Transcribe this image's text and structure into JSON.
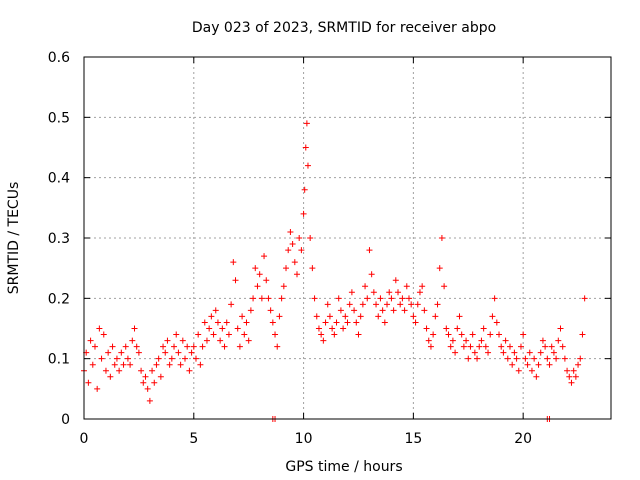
{
  "chart_data": {
    "type": "scatter",
    "title": "Day 023 of 2023, SRMTID for receiver abpo",
    "xlabel": "GPS time / hours",
    "ylabel": "SRMTID / TECUs",
    "xlim": [
      0,
      24
    ],
    "ylim": [
      0,
      0.6
    ],
    "xticks": [
      0,
      5,
      10,
      15,
      20
    ],
    "xtick_labels": [
      "0",
      "5",
      "10",
      "15",
      "20"
    ],
    "yticks": [
      0,
      0.1,
      0.2,
      0.3,
      0.4,
      0.5,
      0.6
    ],
    "ytick_labels": [
      "0",
      "0.1",
      "0.2",
      "0.3",
      "0.4",
      "0.5",
      "0.6"
    ],
    "grid": true,
    "marker": "+",
    "color": "#ff0000",
    "series": [
      {
        "name": "SRMTID",
        "x": [
          0.0,
          0.1,
          0.2,
          0.3,
          0.4,
          0.5,
          0.6,
          0.7,
          0.8,
          0.9,
          1.0,
          1.1,
          1.2,
          1.3,
          1.4,
          1.5,
          1.6,
          1.7,
          1.8,
          1.9,
          2.0,
          2.1,
          2.2,
          2.3,
          2.4,
          2.5,
          2.6,
          2.7,
          2.8,
          2.9,
          3.0,
          3.1,
          3.2,
          3.3,
          3.4,
          3.5,
          3.6,
          3.7,
          3.8,
          3.9,
          4.0,
          4.1,
          4.2,
          4.3,
          4.4,
          4.5,
          4.6,
          4.7,
          4.8,
          4.9,
          5.0,
          5.1,
          5.2,
          5.3,
          5.4,
          5.5,
          5.6,
          5.7,
          5.8,
          5.9,
          6.0,
          6.1,
          6.2,
          6.3,
          6.4,
          6.5,
          6.6,
          6.7,
          6.8,
          6.9,
          7.0,
          7.1,
          7.2,
          7.3,
          7.4,
          7.5,
          7.6,
          7.7,
          7.8,
          7.9,
          8.0,
          8.1,
          8.2,
          8.3,
          8.4,
          8.5,
          8.6,
          8.7,
          8.8,
          8.9,
          9.0,
          9.1,
          9.2,
          9.3,
          9.4,
          9.5,
          9.6,
          9.7,
          9.8,
          9.9,
          10.0,
          10.05,
          10.1,
          10.15,
          10.2,
          10.3,
          10.4,
          10.5,
          10.6,
          10.7,
          10.8,
          10.9,
          11.0,
          11.1,
          11.2,
          11.3,
          11.4,
          11.5,
          11.6,
          11.7,
          11.8,
          11.9,
          12.0,
          12.1,
          12.2,
          12.3,
          12.4,
          12.5,
          12.6,
          12.7,
          12.8,
          12.9,
          13.0,
          13.1,
          13.2,
          13.3,
          13.4,
          13.5,
          13.6,
          13.7,
          13.8,
          13.9,
          14.0,
          14.1,
          14.2,
          14.3,
          14.4,
          14.5,
          14.6,
          14.7,
          14.8,
          14.9,
          15.0,
          15.1,
          15.2,
          15.3,
          15.4,
          15.5,
          15.6,
          15.7,
          15.8,
          15.9,
          16.0,
          16.1,
          16.2,
          16.3,
          16.4,
          16.5,
          16.6,
          16.7,
          16.8,
          16.9,
          17.0,
          17.1,
          17.2,
          17.3,
          17.4,
          17.5,
          17.6,
          17.7,
          17.8,
          17.9,
          18.0,
          18.1,
          18.2,
          18.3,
          18.4,
          18.5,
          18.6,
          18.7,
          18.8,
          18.9,
          19.0,
          19.1,
          19.2,
          19.3,
          19.4,
          19.5,
          19.6,
          19.7,
          19.8,
          19.9,
          20.0,
          20.1,
          20.2,
          20.3,
          20.4,
          20.5,
          20.6,
          20.7,
          20.8,
          20.9,
          21.0,
          21.1,
          21.2,
          21.3,
          21.4,
          21.5,
          21.6,
          21.7,
          21.8,
          21.9,
          22.0,
          22.1,
          22.2,
          22.3,
          22.4,
          22.5,
          22.6,
          22.7,
          22.8,
          8.6,
          8.7,
          21.1,
          21.2
        ],
        "y": [
          0.08,
          0.11,
          0.06,
          0.13,
          0.09,
          0.12,
          0.05,
          0.15,
          0.1,
          0.14,
          0.08,
          0.11,
          0.07,
          0.12,
          0.09,
          0.1,
          0.08,
          0.11,
          0.09,
          0.12,
          0.1,
          0.09,
          0.13,
          0.15,
          0.12,
          0.11,
          0.08,
          0.06,
          0.07,
          0.05,
          0.03,
          0.08,
          0.06,
          0.09,
          0.1,
          0.07,
          0.12,
          0.11,
          0.13,
          0.09,
          0.1,
          0.12,
          0.14,
          0.11,
          0.09,
          0.13,
          0.1,
          0.12,
          0.08,
          0.11,
          0.12,
          0.1,
          0.14,
          0.09,
          0.12,
          0.16,
          0.13,
          0.15,
          0.17,
          0.14,
          0.18,
          0.16,
          0.13,
          0.15,
          0.12,
          0.16,
          0.14,
          0.19,
          0.26,
          0.23,
          0.15,
          0.12,
          0.17,
          0.14,
          0.16,
          0.13,
          0.18,
          0.2,
          0.25,
          0.22,
          0.24,
          0.2,
          0.27,
          0.23,
          0.2,
          0.18,
          0.16,
          0.14,
          0.12,
          0.17,
          0.2,
          0.22,
          0.25,
          0.28,
          0.31,
          0.29,
          0.26,
          0.24,
          0.3,
          0.28,
          0.34,
          0.38,
          0.45,
          0.49,
          0.42,
          0.3,
          0.25,
          0.2,
          0.17,
          0.15,
          0.14,
          0.13,
          0.16,
          0.19,
          0.17,
          0.15,
          0.14,
          0.16,
          0.2,
          0.18,
          0.15,
          0.17,
          0.16,
          0.19,
          0.21,
          0.18,
          0.16,
          0.14,
          0.17,
          0.19,
          0.22,
          0.2,
          0.28,
          0.24,
          0.21,
          0.19,
          0.17,
          0.2,
          0.18,
          0.16,
          0.19,
          0.21,
          0.2,
          0.18,
          0.23,
          0.21,
          0.19,
          0.2,
          0.18,
          0.22,
          0.2,
          0.19,
          0.17,
          0.16,
          0.19,
          0.21,
          0.22,
          0.18,
          0.15,
          0.13,
          0.12,
          0.14,
          0.17,
          0.19,
          0.25,
          0.3,
          0.22,
          0.15,
          0.14,
          0.12,
          0.13,
          0.11,
          0.15,
          0.17,
          0.14,
          0.12,
          0.13,
          0.1,
          0.12,
          0.14,
          0.11,
          0.1,
          0.12,
          0.13,
          0.15,
          0.12,
          0.11,
          0.14,
          0.17,
          0.2,
          0.16,
          0.14,
          0.12,
          0.11,
          0.13,
          0.1,
          0.12,
          0.09,
          0.11,
          0.1,
          0.08,
          0.12,
          0.14,
          0.1,
          0.09,
          0.11,
          0.08,
          0.1,
          0.07,
          0.09,
          0.11,
          0.13,
          0.12,
          0.1,
          0.09,
          0.12,
          0.11,
          0.1,
          0.13,
          0.15,
          0.12,
          0.1,
          0.08,
          0.07,
          0.06,
          0.08,
          0.07,
          0.09,
          0.1,
          0.14,
          0.2,
          0.0,
          0.0,
          0.0,
          0.0
        ]
      }
    ]
  }
}
